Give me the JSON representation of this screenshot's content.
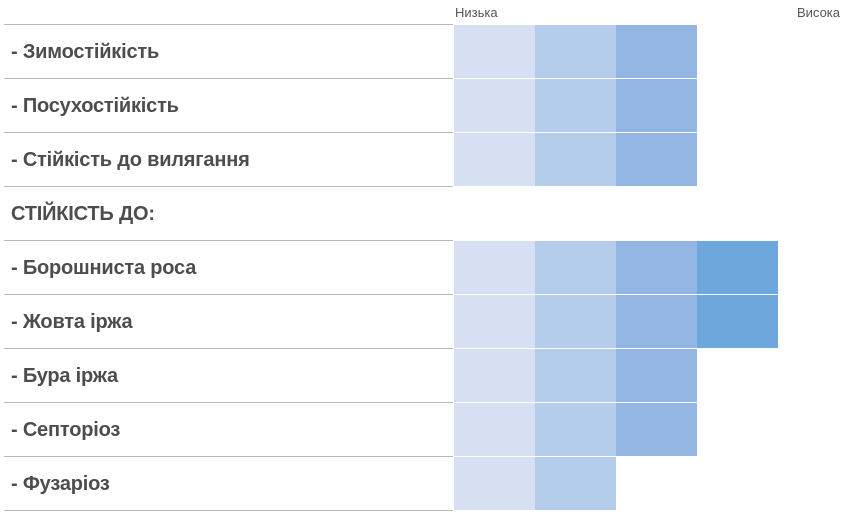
{
  "chart_data": {
    "type": "table",
    "scale": {
      "low": "Низька",
      "high": "Висока"
    },
    "max_level": 4,
    "level_colors": [
      "#d6e0f2",
      "#b3cdeb",
      "#93b6e2",
      "#6ea7dc"
    ],
    "rows": [
      {
        "label": "- Зимостійкість",
        "level": 3
      },
      {
        "label": "- Посухостійкість",
        "level": 3
      },
      {
        "label": "- Стійкість до вилягання",
        "level": 3
      },
      {
        "label": "СТІЙКІСТЬ ДО:",
        "level": 0,
        "header": true
      },
      {
        "label": "- Борошниста роса",
        "level": 4
      },
      {
        "label": "- Жовта іржа",
        "level": 4
      },
      {
        "label": "- Бура іржа",
        "level": 3
      },
      {
        "label": "- Септоріоз",
        "level": 3
      },
      {
        "label": "- Фузаріоз",
        "level": 2
      }
    ]
  }
}
